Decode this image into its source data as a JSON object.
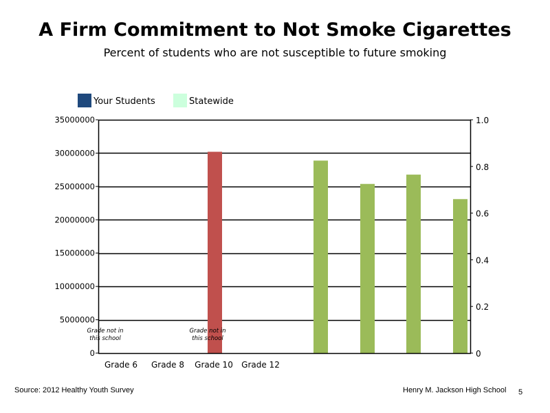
{
  "slide": {
    "title": "A Firm Commitment to Not Smoke Cigarettes",
    "subtitle": "Percent of students who are not susceptible to future smoking",
    "source": "Source: 2012 Healthy Youth Survey",
    "school": "Henry M. Jackson High School",
    "page_number": "5"
  },
  "chart_data": {
    "type": "bar",
    "legend": {
      "placement": "top-left",
      "entries": [
        {
          "name": "Your Students",
          "color": "#1f497d"
        },
        {
          "name": "Statewide",
          "color": "#ccffdd"
        }
      ]
    },
    "categories": [
      "Grade 6",
      "Grade 8",
      "Grade 10",
      "Grade 12"
    ],
    "y_left": {
      "ticks": [
        0,
        5000000,
        10000000,
        15000000,
        20000000,
        25000000,
        30000000,
        35000000
      ],
      "tick_labels": [
        "0",
        "5000000",
        "10000000",
        "15000000",
        "20000000",
        "25000000",
        "30000000",
        "35000000"
      ],
      "range": [
        0,
        35000000
      ]
    },
    "y_right": {
      "ticks": [
        0,
        0.2,
        0.4,
        0.6,
        0.8,
        1.0
      ],
      "tick_labels": [
        "0",
        "0.2",
        "0.4",
        "0.6",
        "0.8",
        "1.0"
      ],
      "range": [
        0,
        1.0
      ]
    },
    "bars": [
      {
        "axis": "left",
        "value": 30200000,
        "color": "#c0504d"
      },
      {
        "axis": "right",
        "value": 0.825,
        "color": "#9bbb59"
      },
      {
        "axis": "right",
        "value": 0.725,
        "color": "#9bbb59"
      },
      {
        "axis": "right",
        "value": 0.765,
        "color": "#9bbb59"
      },
      {
        "axis": "right",
        "value": 0.66,
        "color": "#9bbb59"
      }
    ],
    "annotations": [
      {
        "line1": "Grade not in",
        "line2": "this school"
      },
      {
        "line1": "Grade not in",
        "line2": "this school"
      }
    ],
    "grid": true
  }
}
